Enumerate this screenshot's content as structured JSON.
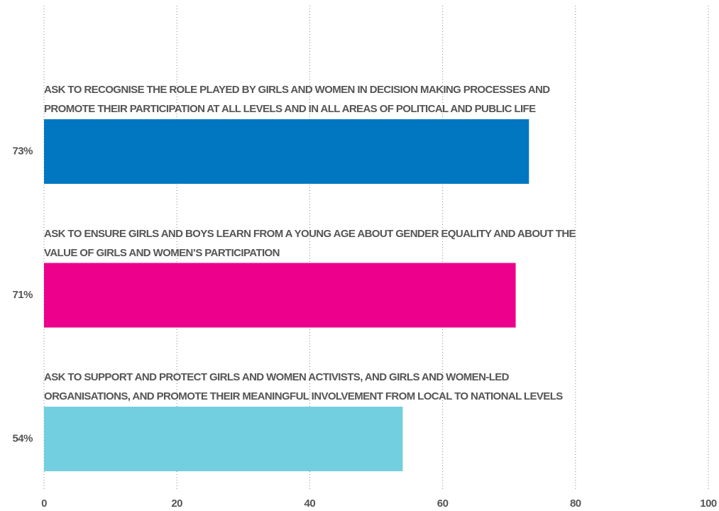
{
  "chart_data": {
    "type": "bar",
    "orientation": "horizontal",
    "categories": [
      "ASK TO RECOGNISE THE ROLE PLAYED BY GIRLS AND WOMEN IN DECISION MAKING PROCESSES AND PROMOTE THEIR PARTICIPATION AT ALL LEVELS AND IN ALL AREAS OF POLITICAL AND PUBLIC LIFE",
      "ASK TO ENSURE GIRLS AND BOYS LEARN FROM A YOUNG AGE ABOUT GENDER EQUALITY AND ABOUT THE VALUE OF GIRLS AND WOMEN’S PARTICIPATION",
      "ASK TO SUPPORT AND PROTECT GIRLS AND WOMEN ACTIVISTS, AND GIRLS AND WOMEN-LED ORGANISATIONS, AND PROMOTE THEIR MEANINGFUL INVOLVEMENT FROM LOCAL TO NATIONAL LEVELS"
    ],
    "values": [
      73,
      71,
      54
    ],
    "value_labels": [
      "73%",
      "71%",
      "54%"
    ],
    "colors": [
      "#0077c0",
      "#ec008c",
      "#72cfe0"
    ],
    "xlim": [
      0,
      100
    ],
    "xticks": [
      0,
      20,
      40,
      60,
      80,
      100
    ],
    "grid": true
  }
}
